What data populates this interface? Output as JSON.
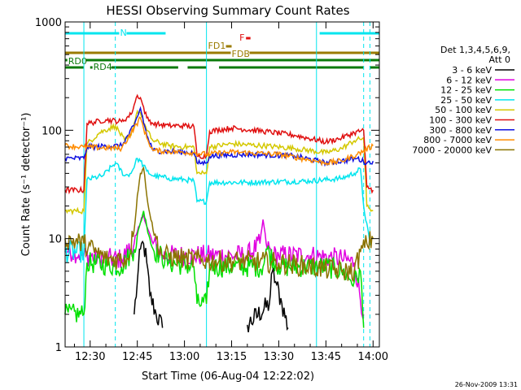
{
  "chart_data": {
    "type": "line",
    "title": "HESSI Observing Summary Count Rates",
    "xlabel": "Start Time (06-Aug-04 12:22:02)",
    "ylabel": "Count Rate (s⁻¹ detector⁻¹)",
    "yscale": "log",
    "ylim": [
      1,
      1000
    ],
    "xlim": [
      "12:22:02",
      "14:02:00"
    ],
    "x_ticks": [
      "12:30",
      "12:45",
      "13:00",
      "13:15",
      "13:30",
      "13:45",
      "14:00"
    ],
    "y_ticks": [
      "1",
      "10",
      "100",
      "1000"
    ],
    "legend_header": [
      "Det 1,3,4,5,6,9,",
      "Att 0"
    ],
    "legend_position": "right",
    "grid": false,
    "timestamp": "26-Nov-2009 13:31",
    "flag_bars": [
      {
        "label": "N",
        "color": "#00e5ee",
        "segments": [
          [
            "12:22:02",
            "12:54:00"
          ],
          [
            "13:43:00",
            "14:02:00"
          ]
        ]
      },
      {
        "label": "F",
        "color": "#e01010",
        "segments": [
          [
            "13:19:30",
            "13:21:00"
          ]
        ]
      },
      {
        "label": "FD1",
        "color": "#9a7b00",
        "segments": [
          [
            "13:12:00",
            "13:15:00"
          ]
        ]
      },
      {
        "label": "FDB",
        "color": "#9a7b00",
        "segments": [
          [
            "12:22:02",
            "14:02:00"
          ]
        ]
      },
      {
        "label": "RD0",
        "color": "#0a7a0a",
        "segments": [
          [
            "12:22:02",
            "14:02:00"
          ]
        ]
      },
      {
        "label": "RD4",
        "color": "#0a7a0a",
        "segments": [
          [
            "12:22:02",
            "12:28:00"
          ],
          [
            "12:30:00",
            "12:58:00"
          ],
          [
            "13:01:00",
            "13:07:00"
          ],
          [
            "13:11:00",
            "13:57:00"
          ],
          [
            "13:59:00",
            "14:02:00"
          ]
        ]
      }
    ],
    "vertical_markers": [
      {
        "time": "12:28:00",
        "style": "solid",
        "color": "#00e5ee"
      },
      {
        "time": "12:38:00",
        "style": "dashed",
        "color": "#00e5ee"
      },
      {
        "time": "13:07:00",
        "style": "solid",
        "color": "#00e5ee"
      },
      {
        "time": "13:42:00",
        "style": "solid",
        "color": "#00e5ee"
      },
      {
        "time": "13:57:00",
        "style": "dashed",
        "color": "#00e5ee"
      },
      {
        "time": "13:59:00",
        "style": "dashed",
        "color": "#00e5ee"
      }
    ],
    "series": [
      {
        "name": "3 - 6 keV",
        "color": "#000000",
        "x": [
          "12:22",
          "12:38",
          "12:42",
          "12:44",
          "12:45",
          "12:46",
          "12:47",
          "12:48",
          "12:49",
          "12:51",
          "12:53",
          "13:07",
          "13:20",
          "13:27",
          "13:28",
          "13:29",
          "13:31",
          "13:33",
          "13:48",
          "13:54",
          "13:57"
        ],
        "values": [
          null,
          null,
          null,
          2.0,
          4.0,
          8.0,
          9.0,
          6.0,
          3.0,
          2.0,
          1.5,
          null,
          1.6,
          2.5,
          5.0,
          4.0,
          2.5,
          1.5,
          null,
          null,
          null
        ]
      },
      {
        "name": "6 - 12 keV",
        "color": "#e000e0",
        "x": [
          "12:22",
          "12:28",
          "12:35",
          "12:40",
          "12:44",
          "12:46",
          "12:47",
          "12:48",
          "12:50",
          "12:53",
          "13:00",
          "13:07",
          "13:15",
          "13:20",
          "13:24",
          "13:25",
          "13:26",
          "13:28",
          "13:30",
          "13:40",
          "13:50",
          "13:54",
          "13:57"
        ],
        "values": [
          8,
          7,
          6.5,
          6.5,
          9,
          14,
          17,
          13,
          9,
          7,
          7,
          7,
          7,
          7,
          9,
          15,
          9,
          7,
          7,
          7,
          6.5,
          6.0,
          2.0
        ]
      },
      {
        "name": "12 - 25 keV",
        "color": "#00e000",
        "x": [
          "12:22",
          "12:28",
          "12:29",
          "12:40",
          "12:44",
          "12:46",
          "12:47",
          "12:48",
          "12:50",
          "12:55",
          "13:03",
          "13:04",
          "13:07",
          "13:08",
          "13:25",
          "13:26",
          "13:30",
          "13:45",
          "13:50",
          "13:54",
          "13:56",
          "13:57"
        ],
        "values": [
          2.0,
          2.0,
          6.0,
          5.5,
          8,
          14,
          18,
          13,
          8,
          6,
          5.5,
          2.5,
          2.5,
          5.5,
          5.5,
          8,
          5.5,
          5.5,
          5.0,
          4.0,
          5.0,
          1.5
        ]
      },
      {
        "name": "25 - 50 keV",
        "color": "#00e5ee",
        "x": [
          "12:22",
          "12:28",
          "12:29",
          "12:34",
          "12:38",
          "12:41",
          "12:43",
          "12:45",
          "12:46",
          "12:48",
          "12:50",
          "12:55",
          "13:00",
          "13:03",
          "13:04",
          "13:07",
          "13:08",
          "13:20",
          "13:40",
          "13:50",
          "13:54",
          "13:56",
          "13:57",
          "13:59"
        ],
        "values": [
          7.5,
          7.5,
          35,
          38,
          50,
          38,
          40,
          55,
          52,
          42,
          38,
          36,
          35,
          34,
          22,
          22,
          33,
          33,
          34,
          36,
          40,
          44,
          20,
          9
        ]
      },
      {
        "name": "50 - 100 keV",
        "color": "#d4c800",
        "x": [
          "12:22",
          "12:28",
          "12:29",
          "12:33",
          "12:38",
          "12:41",
          "12:43",
          "12:45",
          "12:46",
          "12:48",
          "12:50",
          "12:55",
          "13:00",
          "13:03",
          "13:04",
          "13:07",
          "13:08",
          "13:15",
          "13:25",
          "13:35",
          "13:45",
          "13:50",
          "13:54",
          "13:57",
          "13:58",
          "14:00"
        ],
        "values": [
          18,
          18,
          75,
          95,
          110,
          80,
          90,
          150,
          145,
          100,
          80,
          72,
          70,
          70,
          40,
          40,
          70,
          75,
          72,
          68,
          62,
          68,
          80,
          85,
          20,
          18
        ]
      },
      {
        "name": "100 - 300 keV",
        "color": "#e01010",
        "x": [
          "12:22",
          "12:28",
          "12:29",
          "12:35",
          "12:40",
          "12:43",
          "12:45",
          "12:46",
          "12:48",
          "12:50",
          "12:55",
          "13:00",
          "13:03",
          "13:04",
          "13:07",
          "13:08",
          "13:15",
          "13:25",
          "13:35",
          "13:45",
          "13:50",
          "13:54",
          "13:57",
          "13:58",
          "14:00"
        ],
        "values": [
          28,
          28,
          115,
          125,
          120,
          140,
          210,
          200,
          130,
          115,
          110,
          110,
          108,
          58,
          58,
          98,
          105,
          98,
          90,
          78,
          85,
          95,
          100,
          30,
          28
        ]
      },
      {
        "name": "300 - 800 keV",
        "color": "#1010e0",
        "x": [
          "12:22",
          "12:28",
          "12:29",
          "12:40",
          "12:44",
          "12:46",
          "12:48",
          "12:50",
          "13:03",
          "13:04",
          "13:07",
          "13:08",
          "13:20",
          "13:35",
          "13:45",
          "13:50",
          "13:55",
          "13:58",
          "14:00"
        ],
        "values": [
          55,
          55,
          70,
          72,
          110,
          160,
          90,
          65,
          62,
          50,
          50,
          58,
          60,
          58,
          50,
          52,
          55,
          50,
          52
        ]
      },
      {
        "name": "800 - 7000 keV",
        "color": "#ff8c00",
        "x": [
          "12:22",
          "12:28",
          "12:40",
          "12:44",
          "12:46",
          "12:48",
          "12:50",
          "13:03",
          "13:07",
          "13:15",
          "13:30",
          "13:45",
          "13:50",
          "13:55",
          "14:00"
        ],
        "values": [
          72,
          70,
          68,
          105,
          130,
          85,
          65,
          62,
          60,
          63,
          60,
          50,
          52,
          60,
          72
        ]
      },
      {
        "name": "7000 - 20000 keV",
        "color": "#8b7300",
        "x": [
          "12:22",
          "12:28",
          "12:35",
          "12:42",
          "12:44",
          "12:45",
          "12:46",
          "12:47",
          "12:48",
          "12:50",
          "12:53",
          "13:00",
          "13:10",
          "13:20",
          "13:30",
          "13:40",
          "13:50",
          "13:54",
          "13:56",
          "13:58",
          "14:00"
        ],
        "values": [
          10,
          9,
          6.5,
          6.5,
          12,
          25,
          40,
          45,
          25,
          12,
          7,
          6.5,
          6.2,
          6.2,
          6.0,
          5.5,
          5.0,
          5.0,
          7.5,
          9.0,
          10
        ]
      }
    ]
  }
}
